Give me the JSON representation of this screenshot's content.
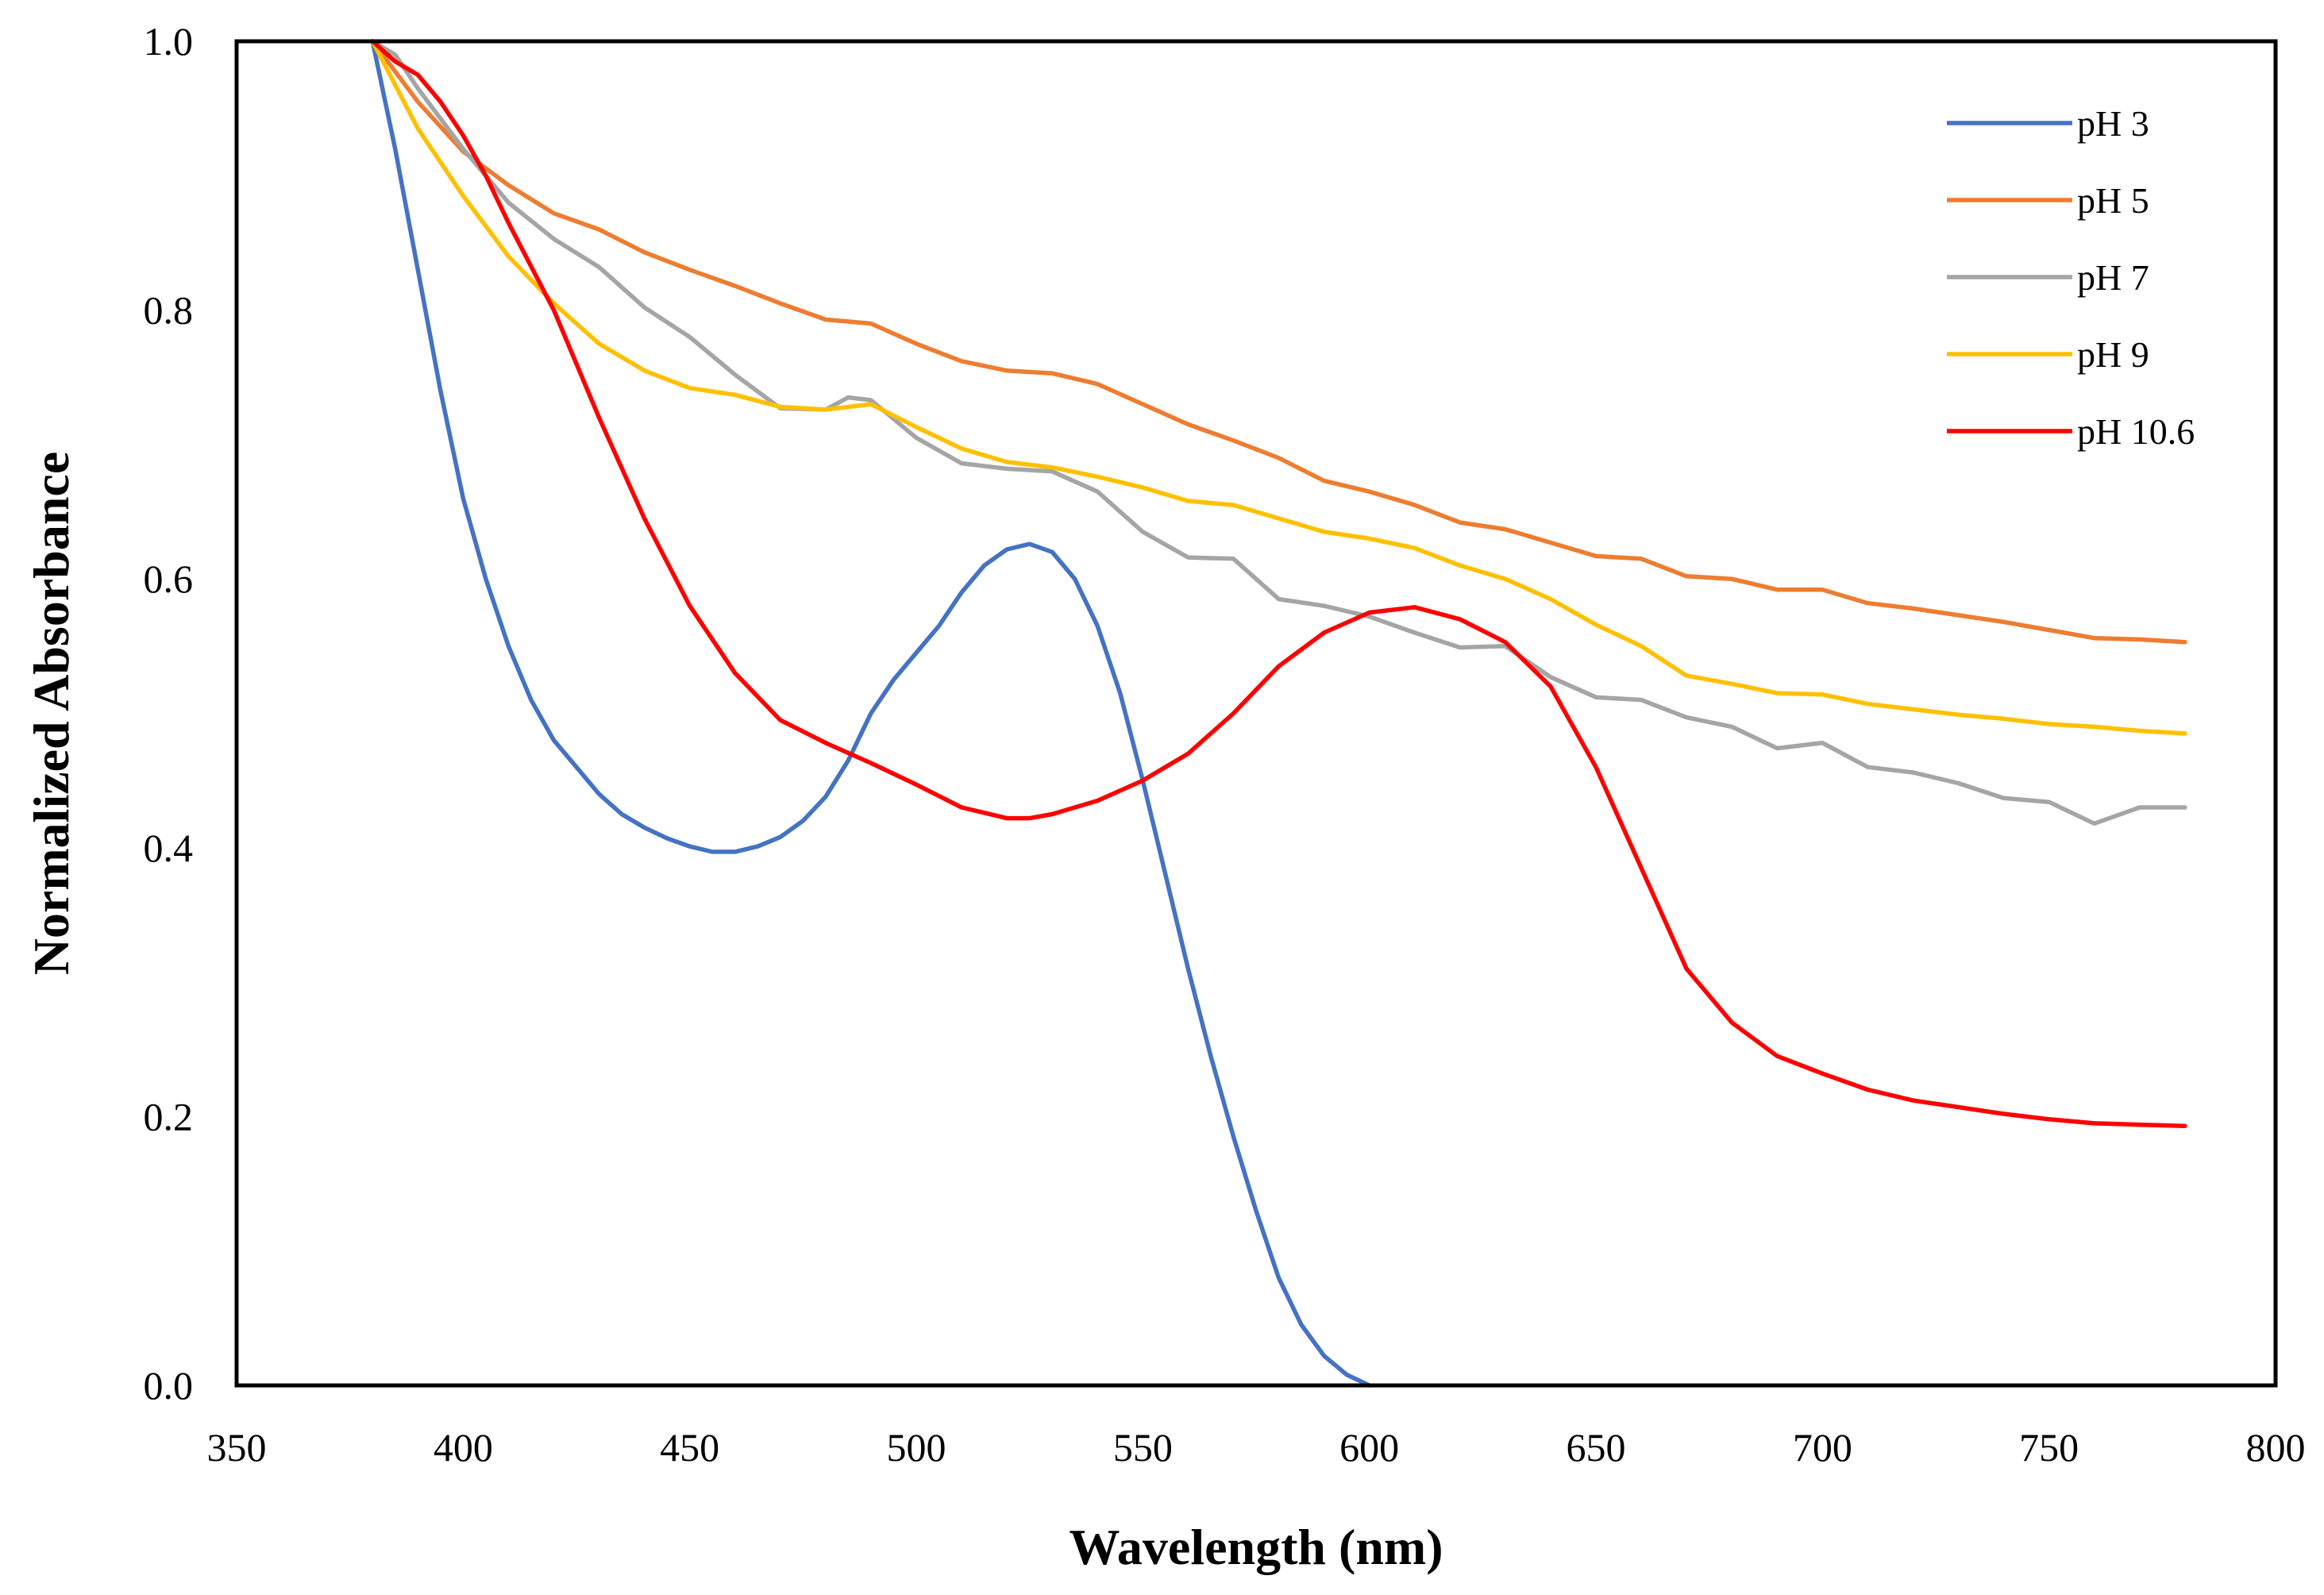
{
  "chart_data": {
    "type": "line",
    "title": "",
    "xlabel": "Wavelength (nm)",
    "ylabel": "Normalized Absorbance",
    "xlim": [
      350,
      800
    ],
    "ylim": [
      0,
      1
    ],
    "xticks": [
      350,
      400,
      450,
      500,
      550,
      600,
      650,
      700,
      750,
      800
    ],
    "xtick_labels": [
      "350",
      "400",
      "450",
      "500",
      "550",
      "600",
      "650",
      "700",
      "750",
      "800"
    ],
    "yticks": [
      0,
      0.2,
      0.4,
      0.6,
      0.8,
      1.0
    ],
    "ytick_labels": [
      "0.0",
      "0.2",
      "0.4",
      "0.6",
      "0.8",
      "1.0"
    ],
    "grid": false,
    "legend_position": "top-right",
    "series": [
      {
        "name": "pH 3",
        "color": "#4472C4",
        "points": [
          [
            380,
            1.0
          ],
          [
            385,
            0.92
          ],
          [
            390,
            0.83
          ],
          [
            395,
            0.74
          ],
          [
            400,
            0.66
          ],
          [
            405,
            0.6
          ],
          [
            410,
            0.55
          ],
          [
            415,
            0.51
          ],
          [
            420,
            0.48
          ],
          [
            425,
            0.46
          ],
          [
            430,
            0.44
          ],
          [
            435,
            0.425
          ],
          [
            440,
            0.415
          ],
          [
            445,
            0.407
          ],
          [
            450,
            0.401
          ],
          [
            455,
            0.397
          ],
          [
            460,
            0.397
          ],
          [
            465,
            0.401
          ],
          [
            470,
            0.408
          ],
          [
            475,
            0.42
          ],
          [
            480,
            0.438
          ],
          [
            485,
            0.465
          ],
          [
            490,
            0.5
          ],
          [
            495,
            0.525
          ],
          [
            500,
            0.545
          ],
          [
            505,
            0.565
          ],
          [
            510,
            0.59
          ],
          [
            515,
            0.61
          ],
          [
            520,
            0.622
          ],
          [
            525,
            0.626
          ],
          [
            530,
            0.62
          ],
          [
            535,
            0.6
          ],
          [
            540,
            0.565
          ],
          [
            545,
            0.515
          ],
          [
            550,
            0.45
          ],
          [
            555,
            0.38
          ],
          [
            560,
            0.31
          ],
          [
            565,
            0.245
          ],
          [
            570,
            0.185
          ],
          [
            575,
            0.13
          ],
          [
            580,
            0.08
          ],
          [
            585,
            0.045
          ],
          [
            590,
            0.022
          ],
          [
            595,
            0.008
          ],
          [
            600,
            0.0
          ]
        ]
      },
      {
        "name": "pH 5",
        "color": "#ED7D31",
        "points": [
          [
            380,
            1.0
          ],
          [
            390,
            0.955
          ],
          [
            400,
            0.918
          ],
          [
            410,
            0.893
          ],
          [
            420,
            0.872
          ],
          [
            430,
            0.86
          ],
          [
            440,
            0.843
          ],
          [
            450,
            0.83
          ],
          [
            460,
            0.818
          ],
          [
            470,
            0.805
          ],
          [
            480,
            0.793
          ],
          [
            490,
            0.79
          ],
          [
            500,
            0.775
          ],
          [
            510,
            0.762
          ],
          [
            520,
            0.755
          ],
          [
            530,
            0.753
          ],
          [
            540,
            0.745
          ],
          [
            550,
            0.73
          ],
          [
            560,
            0.715
          ],
          [
            570,
            0.703
          ],
          [
            580,
            0.69
          ],
          [
            590,
            0.673
          ],
          [
            600,
            0.665
          ],
          [
            610,
            0.655
          ],
          [
            620,
            0.642
          ],
          [
            630,
            0.637
          ],
          [
            640,
            0.627
          ],
          [
            650,
            0.617
          ],
          [
            660,
            0.615
          ],
          [
            670,
            0.602
          ],
          [
            680,
            0.6
          ],
          [
            690,
            0.592
          ],
          [
            700,
            0.592
          ],
          [
            710,
            0.582
          ],
          [
            720,
            0.578
          ],
          [
            730,
            0.573
          ],
          [
            740,
            0.568
          ],
          [
            750,
            0.562
          ],
          [
            760,
            0.556
          ],
          [
            770,
            0.555
          ],
          [
            780,
            0.553
          ]
        ]
      },
      {
        "name": "pH 7",
        "color": "#A5A5A5",
        "points": [
          [
            380,
            1.0
          ],
          [
            385,
            0.99
          ],
          [
            390,
            0.965
          ],
          [
            400,
            0.92
          ],
          [
            410,
            0.88
          ],
          [
            420,
            0.853
          ],
          [
            430,
            0.832
          ],
          [
            440,
            0.802
          ],
          [
            450,
            0.78
          ],
          [
            460,
            0.752
          ],
          [
            470,
            0.727
          ],
          [
            480,
            0.726
          ],
          [
            485,
            0.735
          ],
          [
            490,
            0.733
          ],
          [
            500,
            0.705
          ],
          [
            510,
            0.686
          ],
          [
            520,
            0.682
          ],
          [
            530,
            0.68
          ],
          [
            540,
            0.665
          ],
          [
            550,
            0.635
          ],
          [
            560,
            0.616
          ],
          [
            570,
            0.615
          ],
          [
            580,
            0.585
          ],
          [
            590,
            0.58
          ],
          [
            600,
            0.572
          ],
          [
            610,
            0.56
          ],
          [
            620,
            0.549
          ],
          [
            630,
            0.55
          ],
          [
            640,
            0.527
          ],
          [
            650,
            0.512
          ],
          [
            660,
            0.51
          ],
          [
            670,
            0.497
          ],
          [
            680,
            0.49
          ],
          [
            690,
            0.474
          ],
          [
            700,
            0.478
          ],
          [
            710,
            0.46
          ],
          [
            720,
            0.456
          ],
          [
            730,
            0.448
          ],
          [
            740,
            0.437
          ],
          [
            750,
            0.434
          ],
          [
            760,
            0.418
          ],
          [
            770,
            0.43
          ],
          [
            780,
            0.43
          ]
        ]
      },
      {
        "name": "pH 9",
        "color": "#FFC000",
        "points": [
          [
            380,
            1.0
          ],
          [
            390,
            0.935
          ],
          [
            400,
            0.885
          ],
          [
            410,
            0.84
          ],
          [
            420,
            0.805
          ],
          [
            430,
            0.775
          ],
          [
            440,
            0.755
          ],
          [
            450,
            0.742
          ],
          [
            460,
            0.737
          ],
          [
            470,
            0.728
          ],
          [
            480,
            0.726
          ],
          [
            490,
            0.73
          ],
          [
            500,
            0.713
          ],
          [
            510,
            0.697
          ],
          [
            520,
            0.687
          ],
          [
            530,
            0.683
          ],
          [
            540,
            0.676
          ],
          [
            550,
            0.668
          ],
          [
            560,
            0.658
          ],
          [
            570,
            0.655
          ],
          [
            580,
            0.645
          ],
          [
            590,
            0.635
          ],
          [
            600,
            0.63
          ],
          [
            610,
            0.623
          ],
          [
            620,
            0.61
          ],
          [
            630,
            0.6
          ],
          [
            640,
            0.585
          ],
          [
            650,
            0.566
          ],
          [
            660,
            0.55
          ],
          [
            670,
            0.528
          ],
          [
            680,
            0.522
          ],
          [
            690,
            0.515
          ],
          [
            700,
            0.514
          ],
          [
            710,
            0.507
          ],
          [
            720,
            0.503
          ],
          [
            730,
            0.499
          ],
          [
            740,
            0.496
          ],
          [
            750,
            0.492
          ],
          [
            760,
            0.49
          ],
          [
            770,
            0.487
          ],
          [
            780,
            0.485
          ]
        ]
      },
      {
        "name": "pH 10.6",
        "color": "#FF0000",
        "points": [
          [
            380,
            1.0
          ],
          [
            385,
            0.985
          ],
          [
            390,
            0.975
          ],
          [
            395,
            0.955
          ],
          [
            400,
            0.93
          ],
          [
            405,
            0.9
          ],
          [
            410,
            0.865
          ],
          [
            420,
            0.8
          ],
          [
            430,
            0.72
          ],
          [
            440,
            0.645
          ],
          [
            450,
            0.58
          ],
          [
            460,
            0.53
          ],
          [
            470,
            0.495
          ],
          [
            480,
            0.478
          ],
          [
            490,
            0.463
          ],
          [
            500,
            0.447
          ],
          [
            510,
            0.43
          ],
          [
            520,
            0.422
          ],
          [
            525,
            0.422
          ],
          [
            530,
            0.425
          ],
          [
            540,
            0.435
          ],
          [
            550,
            0.45
          ],
          [
            560,
            0.47
          ],
          [
            570,
            0.5
          ],
          [
            580,
            0.535
          ],
          [
            590,
            0.56
          ],
          [
            600,
            0.575
          ],
          [
            610,
            0.579
          ],
          [
            620,
            0.57
          ],
          [
            630,
            0.553
          ],
          [
            640,
            0.52
          ],
          [
            650,
            0.46
          ],
          [
            660,
            0.385
          ],
          [
            670,
            0.31
          ],
          [
            680,
            0.27
          ],
          [
            690,
            0.245
          ],
          [
            700,
            0.232
          ],
          [
            710,
            0.22
          ],
          [
            720,
            0.212
          ],
          [
            730,
            0.207
          ],
          [
            740,
            0.202
          ],
          [
            750,
            0.198
          ],
          [
            760,
            0.195
          ],
          [
            770,
            0.194
          ],
          [
            780,
            0.193
          ]
        ]
      }
    ]
  }
}
